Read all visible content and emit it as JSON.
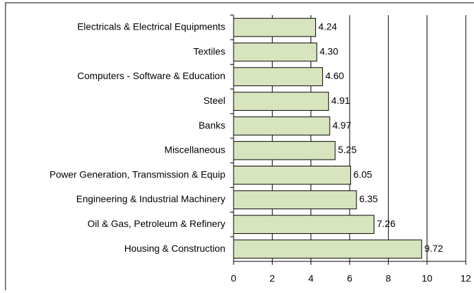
{
  "chart_data": {
    "type": "barh",
    "categories": [
      "Electricals & Electrical Equipments",
      "Textiles",
      "Computers - Software & Education",
      "Steel",
      "Banks",
      "Miscellaneous",
      "Power Generation, Transmission & Equip",
      "Engineering & Industrial Machinery",
      "Oil & Gas, Petroleum & Refinery",
      "Housing & Construction"
    ],
    "values": [
      4.24,
      4.3,
      4.6,
      4.91,
      4.97,
      5.25,
      6.05,
      6.35,
      7.26,
      9.72
    ],
    "value_labels": [
      "4.24",
      "4.30",
      "4.60",
      "4.91",
      "4.97",
      "5.25",
      "6.05",
      "6.35",
      "7.26",
      "9.72"
    ],
    "color": "#d7e4bd",
    "xlim": [
      0,
      12
    ],
    "xticks": [
      0,
      2,
      4,
      6,
      8,
      10,
      12
    ],
    "grid": true
  }
}
